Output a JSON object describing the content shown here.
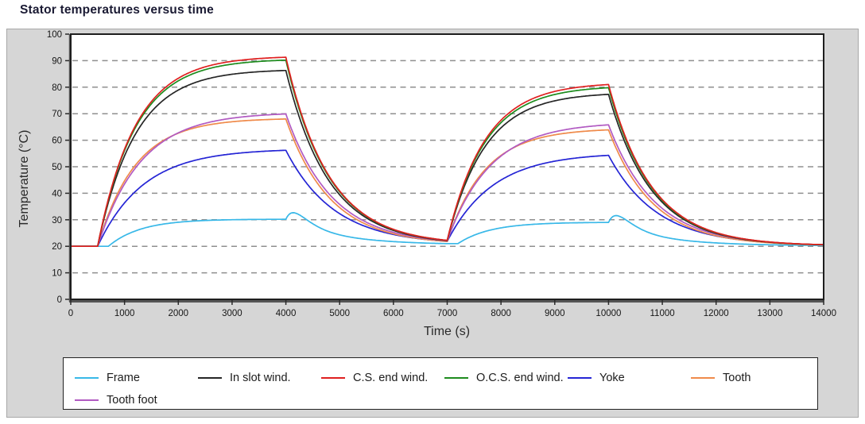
{
  "page": {
    "title": "Stator temperatures versus time"
  },
  "chart_data": {
    "type": "line",
    "title": "Stator temperatures versus time",
    "xlabel": "Time (s)",
    "ylabel": "Temperature (°C)",
    "xlim": [
      0,
      14000
    ],
    "ylim": [
      0,
      100
    ],
    "x_ticks": [
      0,
      1000,
      2000,
      3000,
      4000,
      5000,
      6000,
      7000,
      8000,
      9000,
      10000,
      11000,
      12000,
      13000,
      14000
    ],
    "y_ticks": [
      0,
      10,
      20,
      30,
      40,
      50,
      60,
      70,
      80,
      90,
      100
    ],
    "grid": "horizontal-dashed",
    "legend_position": "bottom",
    "style": {
      "frame_bg": "#d6d6d6",
      "plot_bg": "#ffffff",
      "grid_color": "#8f8f8f",
      "axis_color": "#1e1e1e",
      "title_color": "#1a1a33"
    },
    "key_times": [
      0,
      500,
      1000,
      2000,
      3000,
      4000,
      5000,
      6000,
      7000,
      8000,
      9000,
      10000,
      11000,
      12000,
      13000,
      14000
    ],
    "series": [
      {
        "name": "Frame",
        "color": "#38b8e8",
        "z": 1,
        "values": [
          20,
          20,
          24.0,
          29.1,
          30.0,
          30.2,
          25.7,
          22.4,
          21.0,
          27.0,
          28.7,
          29.0,
          25.0,
          21.9,
          20.8,
          20.4
        ],
        "model": {
          "heat_tau": 600,
          "cool_tau": 950,
          "peak1": 30.2,
          "peak2": 29.0,
          "base1": 20.6,
          "base2": 20.2,
          "delay": 200,
          "bump_amp": 4,
          "bump_rise": 200
        }
      },
      {
        "name": "In slot wind.",
        "color": "#262626",
        "z": 5,
        "values": [
          20,
          20,
          54.0,
          78.9,
          84.9,
          86.3,
          39.4,
          26.0,
          22.1,
          64.7,
          74.9,
          77.3,
          36.6,
          24.9,
          21.5,
          20.6
        ],
        "model": {
          "heat_tau": 700,
          "cool_tau": 800,
          "peak1": 86.3,
          "peak2": 77.3,
          "base1": 20.6,
          "base2": 20.2
        }
      },
      {
        "name": "C.S. end wind.",
        "color": "#df2020",
        "z": 7,
        "values": [
          20,
          20,
          56.6,
          83.3,
          89.8,
          91.3,
          40.9,
          26.4,
          22.3,
          67.5,
          78.4,
          81.0,
          37.6,
          25.2,
          21.6,
          20.6
        ],
        "model": {
          "heat_tau": 700,
          "cool_tau": 800,
          "peak1": 91.3,
          "peak2": 81.0,
          "base1": 20.6,
          "base2": 20.2
        }
      },
      {
        "name": "O.C.S. end wind.",
        "color": "#1e8c1e",
        "z": 6,
        "values": [
          20,
          20,
          56.0,
          82.3,
          88.7,
          90.2,
          40.5,
          26.3,
          22.2,
          66.6,
          77.2,
          79.8,
          37.3,
          25.1,
          21.6,
          20.6
        ],
        "model": {
          "heat_tau": 700,
          "cool_tau": 800,
          "peak1": 90.2,
          "peak2": 79.8,
          "base1": 20.6,
          "base2": 20.2
        }
      },
      {
        "name": "Yoke",
        "color": "#2525d5",
        "z": 2,
        "values": [
          20,
          20,
          36.4,
          50.5,
          54.9,
          56.2,
          32.3,
          24.5,
          21.9,
          45.0,
          52.1,
          54.3,
          31.4,
          23.9,
          21.4,
          20.5
        ],
        "model": {
          "heat_tau": 850,
          "cool_tau": 900,
          "peak1": 56.2,
          "peak2": 54.3,
          "base1": 20.6,
          "base2": 20.2
        }
      },
      {
        "name": "Tooth",
        "color": "#ef8a4a",
        "z": 3,
        "values": [
          20,
          20,
          44.6,
          62.7,
          67.0,
          68.0,
          34.6,
          24.7,
          21.8,
          54.3,
          62.0,
          63.9,
          33.1,
          24.0,
          21.3,
          20.5
        ],
        "model": {
          "heat_tau": 700,
          "cool_tau": 820,
          "peak1": 68.0,
          "peak2": 63.9,
          "base1": 20.6,
          "base2": 20.2
        }
      },
      {
        "name": "Tooth foot",
        "color": "#b15ac2",
        "z": 4,
        "values": [
          20,
          20,
          43.5,
          62.8,
          68.3,
          69.9,
          35.8,
          25.3,
          22.0,
          54.0,
          63.2,
          65.8,
          34.3,
          24.5,
          21.5,
          20.6
        ],
        "model": {
          "heat_tau": 800,
          "cool_tau": 850,
          "peak1": 69.9,
          "peak2": 65.8,
          "base1": 20.6,
          "base2": 20.2
        }
      }
    ],
    "events": {
      "heat_on_1_s": 500,
      "heat_off_1_s": 4000,
      "heat_on_2_s": 7000,
      "heat_off_2_s": 10000,
      "ambient_temp_c": 20
    }
  }
}
